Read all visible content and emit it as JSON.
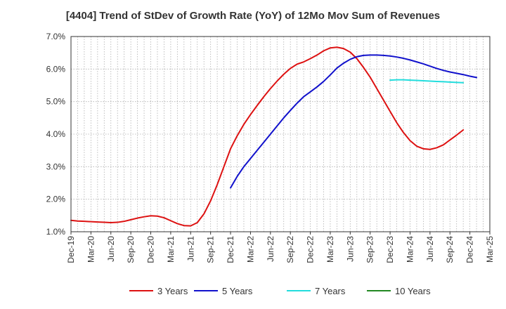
{
  "chart_data": {
    "type": "line",
    "title": "[4404]  Trend of StDev of Growth Rate (YoY) of 12Mo Mov Sum of Revenues",
    "xlabel": "",
    "ylabel": "",
    "ylim": [
      1.0,
      7.0
    ],
    "y_ticks": [
      "1.0%",
      "2.0%",
      "3.0%",
      "4.0%",
      "5.0%",
      "6.0%",
      "7.0%"
    ],
    "x_ticks": [
      "Dec-19",
      "Mar-20",
      "Jun-20",
      "Sep-20",
      "Dec-20",
      "Mar-21",
      "Jun-21",
      "Sep-21",
      "Dec-21",
      "Mar-22",
      "Jun-22",
      "Sep-22",
      "Dec-22",
      "Mar-23",
      "Jun-23",
      "Sep-23",
      "Dec-23",
      "Mar-24",
      "Jun-24",
      "Sep-24",
      "Dec-24",
      "Mar-25"
    ],
    "grid": true,
    "legend_position": "bottom",
    "series": [
      {
        "name": "3 Years",
        "color": "#dd1111",
        "start_index": 0,
        "values": [
          1.35,
          1.33,
          1.32,
          1.31,
          1.3,
          1.29,
          1.28,
          1.29,
          1.32,
          1.37,
          1.42,
          1.46,
          1.49,
          1.48,
          1.43,
          1.34,
          1.25,
          1.19,
          1.18,
          1.28,
          1.55,
          1.95,
          2.45,
          3.0,
          3.55,
          3.95,
          4.3,
          4.6,
          4.88,
          5.15,
          5.4,
          5.63,
          5.84,
          6.02,
          6.15,
          6.22,
          6.32,
          6.43,
          6.56,
          6.65,
          6.67,
          6.63,
          6.52,
          6.32,
          6.05,
          5.75,
          5.4,
          5.05,
          4.7,
          4.35,
          4.05,
          3.8,
          3.63,
          3.55,
          3.53,
          3.58,
          3.67,
          3.82,
          3.97,
          4.13
        ]
      },
      {
        "name": "5 Years",
        "color": "#1111cc",
        "start_index": 24,
        "values": [
          2.35,
          2.7,
          3.0,
          3.25,
          3.5,
          3.75,
          4.0,
          4.25,
          4.5,
          4.73,
          4.95,
          5.15,
          5.3,
          5.45,
          5.62,
          5.82,
          6.03,
          6.18,
          6.3,
          6.38,
          6.42,
          6.43,
          6.43,
          6.42,
          6.4,
          6.37,
          6.33,
          6.28,
          6.22,
          6.16,
          6.09,
          6.02,
          5.96,
          5.91,
          5.87,
          5.83,
          5.78,
          5.74
        ]
      },
      {
        "name": "7 Years",
        "color": "#22dddd",
        "start_index": 48,
        "values": [
          5.66,
          5.67,
          5.67,
          5.66,
          5.65,
          5.64,
          5.63,
          5.62,
          5.61,
          5.6,
          5.59,
          5.58
        ]
      },
      {
        "name": "10 Years",
        "color": "#228822",
        "start_index": 0,
        "values": []
      }
    ]
  }
}
